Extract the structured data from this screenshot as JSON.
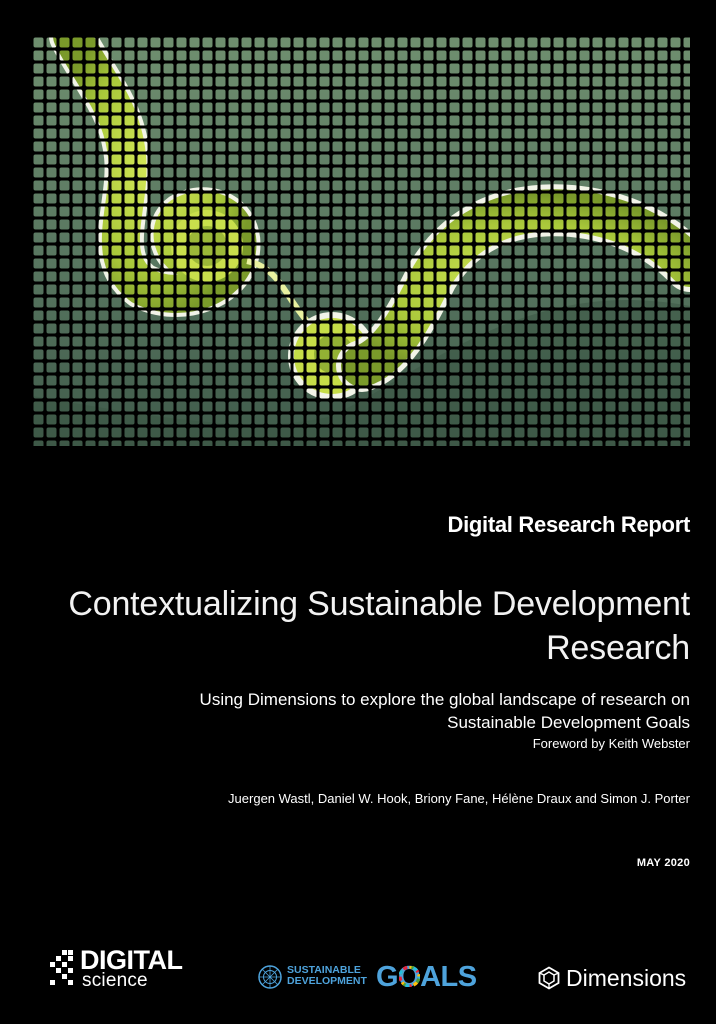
{
  "report_label": "Digital Research Report",
  "title": "Contextualizing Sustainable Development Research",
  "subtitle": "Using Dimensions to explore the global landscape of research on Sustainable Development Goals",
  "foreword": "Foreword by Keith Webster",
  "authors": "Juergen Wastl, Daniel W. Hook, Briony Fane, Hélène Draux and Simon J. Porter",
  "date": "MAY 2020",
  "logos": {
    "digital_science": {
      "line1": "DIGITAL",
      "line2": "science"
    },
    "sdg": {
      "line1": "SUSTAINABLE",
      "line2": "DEVELOPMENT",
      "word": "GOALS"
    },
    "dimensions": {
      "name": "Dimensions"
    }
  },
  "colors": {
    "background": "#000000",
    "text": "#ffffff",
    "sdg_blue": "#4ea3dc",
    "image_green": "#5a7a5e",
    "image_lime": "#c8e04a"
  }
}
